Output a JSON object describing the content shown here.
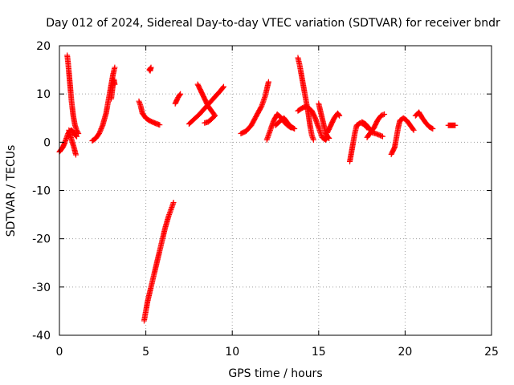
{
  "chart_data": {
    "type": "scatter",
    "title": "Day 012 of 2024, Sidereal Day-to-day VTEC variation (SDTVAR) for receiver bndr",
    "xlabel": "GPS time / hours",
    "ylabel": "SDTVAR / TECUs",
    "xlim": [
      0,
      25
    ],
    "ylim": [
      -40,
      20
    ],
    "xticks": [
      0,
      5,
      10,
      15,
      20,
      25
    ],
    "yticks": [
      -40,
      -30,
      -20,
      -10,
      0,
      10,
      20
    ],
    "xtick_labels": [
      "0",
      "5",
      "10",
      "15",
      "20",
      "25"
    ],
    "ytick_labels": [
      "-40",
      "-30",
      "-20",
      "-10",
      "0",
      "10",
      "20"
    ],
    "grid": true,
    "marker": "plus",
    "color": "#ff0000",
    "series": [
      {
        "segments": [
          [
            [
              0.0,
              -2.0
            ],
            [
              0.1,
              -1.5
            ],
            [
              0.2,
              -1.0
            ],
            [
              0.3,
              -0.2
            ],
            [
              0.4,
              0.8
            ],
            [
              0.5,
              1.8
            ],
            [
              0.6,
              2.3
            ],
            [
              0.7,
              2.5
            ],
            [
              0.8,
              2.1
            ],
            [
              0.9,
              1.5
            ],
            [
              1.0,
              1.2
            ]
          ],
          [
            [
              0.45,
              18
            ],
            [
              0.5,
              16.5
            ],
            [
              0.55,
              14.5
            ],
            [
              0.6,
              12.5
            ],
            [
              0.65,
              10.5
            ],
            [
              0.7,
              8.5
            ],
            [
              0.75,
              7
            ],
            [
              0.8,
              5.5
            ],
            [
              0.85,
              4.5
            ],
            [
              0.9,
              3.5
            ],
            [
              1.0,
              2.5
            ],
            [
              1.1,
              1.8
            ]
          ],
          [
            [
              0.55,
              2.5
            ],
            [
              0.65,
              1.2
            ],
            [
              0.75,
              0
            ],
            [
              0.85,
              -1.2
            ],
            [
              0.95,
              -2.6
            ]
          ],
          [
            [
              1.9,
              0.3
            ],
            [
              2.1,
              0.8
            ],
            [
              2.3,
              1.8
            ],
            [
              2.5,
              3.5
            ],
            [
              2.7,
              6
            ],
            [
              2.8,
              8
            ],
            [
              2.9,
              10
            ],
            [
              3.0,
              12
            ],
            [
              3.1,
              14
            ],
            [
              3.2,
              15.5
            ]
          ],
          [
            [
              3.0,
              9
            ],
            [
              3.05,
              10.5
            ],
            [
              3.1,
              12
            ],
            [
              3.15,
              13
            ],
            [
              3.2,
              12
            ]
          ],
          [
            [
              4.6,
              8.5
            ],
            [
              4.7,
              7.5
            ],
            [
              4.8,
              6
            ],
            [
              5.0,
              5
            ],
            [
              5.2,
              4.5
            ],
            [
              5.5,
              4
            ],
            [
              5.8,
              3.6
            ]
          ],
          [
            [
              5.2,
              15
            ],
            [
              5.3,
              15.5
            ],
            [
              5.25,
              14.8
            ]
          ],
          [
            [
              4.9,
              -37
            ],
            [
              5.0,
              -35
            ],
            [
              5.1,
              -33
            ],
            [
              5.3,
              -30
            ],
            [
              5.5,
              -27
            ],
            [
              5.7,
              -24
            ],
            [
              5.9,
              -21
            ],
            [
              6.1,
              -18
            ],
            [
              6.3,
              -15.5
            ],
            [
              6.5,
              -13.5
            ],
            [
              6.6,
              -12.5
            ]
          ],
          [
            [
              6.7,
              8
            ],
            [
              6.8,
              8.8
            ],
            [
              6.9,
              9.5
            ],
            [
              7.0,
              10
            ]
          ],
          [
            [
              7.5,
              3.8
            ],
            [
              7.8,
              4.8
            ],
            [
              8.1,
              5.8
            ],
            [
              8.4,
              7
            ],
            [
              8.7,
              8.2
            ],
            [
              9.0,
              9.4
            ],
            [
              9.3,
              10.6
            ],
            [
              9.5,
              11.5
            ]
          ],
          [
            [
              8.0,
              12
            ],
            [
              8.2,
              10.5
            ],
            [
              8.4,
              9
            ],
            [
              8.6,
              7.5
            ],
            [
              8.8,
              6.5
            ],
            [
              9.0,
              5.5
            ],
            [
              8.8,
              4.8
            ],
            [
              8.6,
              4.2
            ],
            [
              8.4,
              4
            ]
          ],
          [
            [
              10.5,
              1.8
            ],
            [
              10.8,
              2.3
            ],
            [
              11.1,
              3.5
            ],
            [
              11.4,
              5.5
            ],
            [
              11.7,
              7.5
            ],
            [
              11.9,
              9.5
            ],
            [
              12.0,
              11
            ],
            [
              12.1,
              12.5
            ]
          ],
          [
            [
              12.0,
              0.5
            ],
            [
              12.2,
              2.5
            ],
            [
              12.4,
              4.5
            ],
            [
              12.6,
              5.8
            ],
            [
              12.8,
              5.2
            ],
            [
              13.0,
              4.2
            ],
            [
              13.2,
              3.5
            ],
            [
              13.4,
              3.0
            ]
          ],
          [
            [
              12.5,
              3.5
            ],
            [
              12.8,
              4.5
            ],
            [
              13.0,
              5
            ],
            [
              13.2,
              4
            ],
            [
              13.4,
              3.2
            ],
            [
              13.6,
              2.8
            ]
          ],
          [
            [
              13.8,
              17.5
            ],
            [
              13.9,
              16
            ],
            [
              14.0,
              14
            ],
            [
              14.1,
              12
            ],
            [
              14.2,
              10
            ],
            [
              14.3,
              8
            ],
            [
              14.4,
              6
            ],
            [
              14.5,
              3.5
            ],
            [
              14.6,
              1.5
            ],
            [
              14.7,
              0.5
            ]
          ],
          [
            [
              13.8,
              6.5
            ],
            [
              14.0,
              7
            ],
            [
              14.3,
              7.5
            ],
            [
              14.6,
              6.5
            ],
            [
              14.8,
              5
            ],
            [
              15.0,
              3
            ],
            [
              15.2,
              1
            ],
            [
              15.4,
              0.5
            ],
            [
              15.5,
              1
            ]
          ],
          [
            [
              15.0,
              8
            ],
            [
              15.1,
              6.5
            ],
            [
              15.2,
              5
            ],
            [
              15.3,
              3.5
            ],
            [
              15.4,
              2
            ],
            [
              15.5,
              1.2
            ],
            [
              15.6,
              0.8
            ]
          ],
          [
            [
              15.5,
              2
            ],
            [
              15.7,
              3.5
            ],
            [
              15.9,
              5
            ],
            [
              16.1,
              6
            ],
            [
              16.2,
              5.5
            ]
          ],
          [
            [
              16.8,
              -4
            ],
            [
              16.9,
              -2
            ],
            [
              17.0,
              0
            ],
            [
              17.1,
              2
            ],
            [
              17.2,
              3.5
            ],
            [
              17.4,
              4
            ],
            [
              17.6,
              3.8
            ],
            [
              17.8,
              3
            ]
          ],
          [
            [
              17.5,
              4.2
            ],
            [
              17.7,
              3.8
            ],
            [
              17.9,
              3
            ],
            [
              18.1,
              2
            ],
            [
              18.3,
              1.8
            ],
            [
              18.5,
              1.5
            ],
            [
              18.7,
              1.2
            ]
          ],
          [
            [
              17.8,
              1
            ],
            [
              18.0,
              2
            ],
            [
              18.2,
              3
            ],
            [
              18.4,
              4.5
            ],
            [
              18.6,
              5.5
            ],
            [
              18.8,
              5.8
            ]
          ],
          [
            [
              19.2,
              -2.5
            ],
            [
              19.4,
              -1
            ],
            [
              19.5,
              1
            ],
            [
              19.6,
              3
            ],
            [
              19.7,
              4.5
            ],
            [
              19.9,
              5
            ],
            [
              20.1,
              4.5
            ],
            [
              20.3,
              3.5
            ],
            [
              20.5,
              2.5
            ]
          ],
          [
            [
              20.6,
              5.5
            ],
            [
              20.8,
              6.2
            ],
            [
              21.0,
              5
            ],
            [
              21.2,
              4
            ],
            [
              21.4,
              3.2
            ],
            [
              21.6,
              2.8
            ]
          ],
          [
            [
              22.5,
              3.5
            ],
            [
              22.6,
              3.5
            ],
            [
              22.7,
              3.5
            ],
            [
              22.8,
              3.5
            ],
            [
              22.9,
              3.5
            ]
          ]
        ]
      }
    ]
  }
}
